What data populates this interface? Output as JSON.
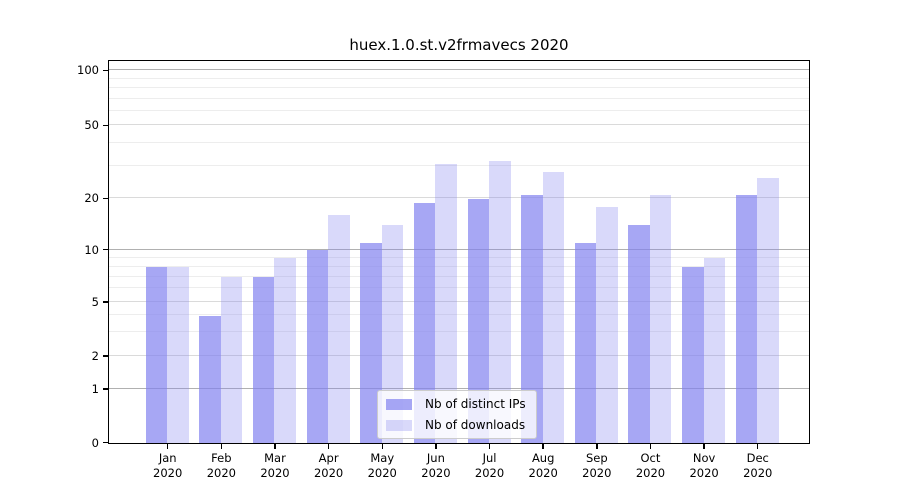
{
  "chart_data": {
    "type": "bar",
    "title": "huex.1.0.st.v2frmavecs 2020",
    "categories": [
      "Jan",
      "Feb",
      "Mar",
      "Apr",
      "May",
      "Jun",
      "Jul",
      "Aug",
      "Sep",
      "Oct",
      "Nov",
      "Dec"
    ],
    "category_year": "2020",
    "series": [
      {
        "name": "Nb of distinct IPs",
        "color": "rgba(130,130,240,0.7)",
        "values": [
          8,
          4,
          7,
          10,
          11,
          19,
          20,
          21,
          11,
          14,
          8,
          21
        ]
      },
      {
        "name": "Nb of downloads",
        "color": "rgba(130,130,240,0.3)",
        "values": [
          8,
          7,
          9,
          16,
          14,
          31,
          32,
          28,
          18,
          21,
          9,
          26
        ]
      }
    ],
    "y_axis": {
      "scale": "log-like with linear segment near zero",
      "tick_values": [
        0,
        1,
        2,
        5,
        10,
        20,
        50,
        100
      ],
      "tick_labels": [
        "0",
        "1",
        "2",
        "5",
        "10",
        "20",
        "50",
        "100"
      ],
      "decade_ticks": [
        1,
        10,
        100
      ],
      "minor_gridlines": [
        3,
        4,
        6,
        7,
        8,
        9,
        30,
        40,
        60,
        70,
        80,
        90
      ],
      "range": [
        0,
        100
      ]
    },
    "legend": {
      "position": "bottom-center",
      "entries": [
        "Nb of distinct IPs",
        "Nb of downloads"
      ]
    },
    "grid": true
  },
  "colors": {
    "bar_base": "#8282f0",
    "decade_gridline": "#b0b0b0",
    "labeled_gridline": "#dadada",
    "minor_gridline": "#ededed",
    "spine": "#000000",
    "background": "#ffffff"
  }
}
